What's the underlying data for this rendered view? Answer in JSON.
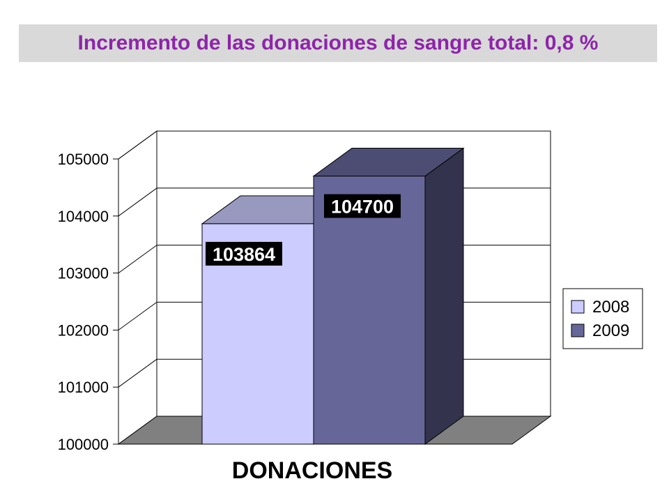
{
  "chart_data": {
    "type": "bar",
    "title": "Incremento de las donaciones de sangre total: 0,8 %",
    "categories": [
      "DONACIONES"
    ],
    "xlabel": "DONACIONES",
    "ylabel": "",
    "ylim": [
      100000,
      105000
    ],
    "yticks": [
      "100000",
      "101000",
      "102000",
      "103000",
      "104000",
      "105000"
    ],
    "grid": true,
    "legend_position": "right",
    "series": [
      {
        "name": "2008",
        "values": [
          103864
        ],
        "label": "103864",
        "color": "#ccccff"
      },
      {
        "name": "2009",
        "values": [
          104700
        ],
        "label": "104700",
        "color": "#666699"
      }
    ]
  }
}
